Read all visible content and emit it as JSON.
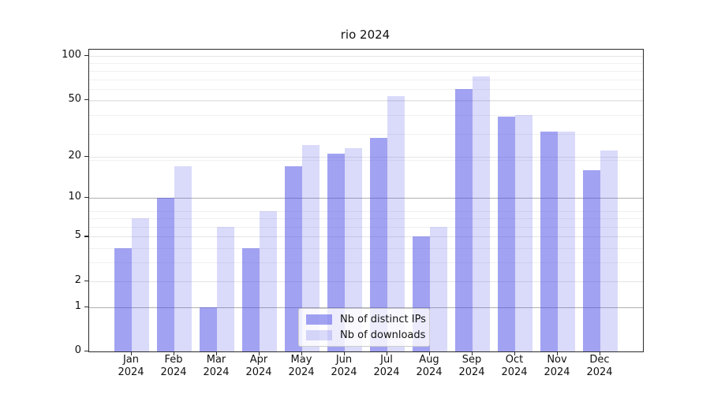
{
  "title": "rio 2024",
  "legend": {
    "items": [
      {
        "label": "Nb of distinct IPs",
        "color": "rgba(70,70,230,0.5)"
      },
      {
        "label": "Nb of downloads",
        "color": "rgba(70,70,230,0.2)"
      }
    ]
  },
  "chart_data": {
    "type": "bar",
    "title": "rio 2024",
    "xlabel": "",
    "ylabel": "",
    "y_scale": "log(1+x)",
    "ylim": [
      0,
      110
    ],
    "grid": "on",
    "legend_position": "lower center",
    "categories": [
      "Jan",
      "Feb",
      "Mar",
      "Apr",
      "May",
      "Jun",
      "Jul",
      "Aug",
      "Sep",
      "Oct",
      "Nov",
      "Dec"
    ],
    "category_year": "2024",
    "series": [
      {
        "name": "Nb of distinct IPs",
        "color": "rgba(70,70,230,0.5)",
        "values": [
          4,
          10,
          1,
          4,
          17,
          21,
          27,
          5,
          59,
          38,
          30,
          16
        ]
      },
      {
        "name": "Nb of downloads",
        "color": "rgba(70,70,230,0.2)",
        "values": [
          7,
          17,
          6,
          8,
          24,
          23,
          53,
          6,
          72,
          39,
          30,
          22
        ]
      }
    ],
    "y_ticks": [
      0,
      1,
      2,
      5,
      10,
      20,
      50,
      100
    ],
    "y_minor_ticks": [
      2,
      3,
      4,
      5,
      6,
      7,
      8,
      19,
      29,
      39,
      49,
      59,
      69,
      79,
      89
    ],
    "emphasized_gridlines": [
      1,
      10
    ]
  }
}
